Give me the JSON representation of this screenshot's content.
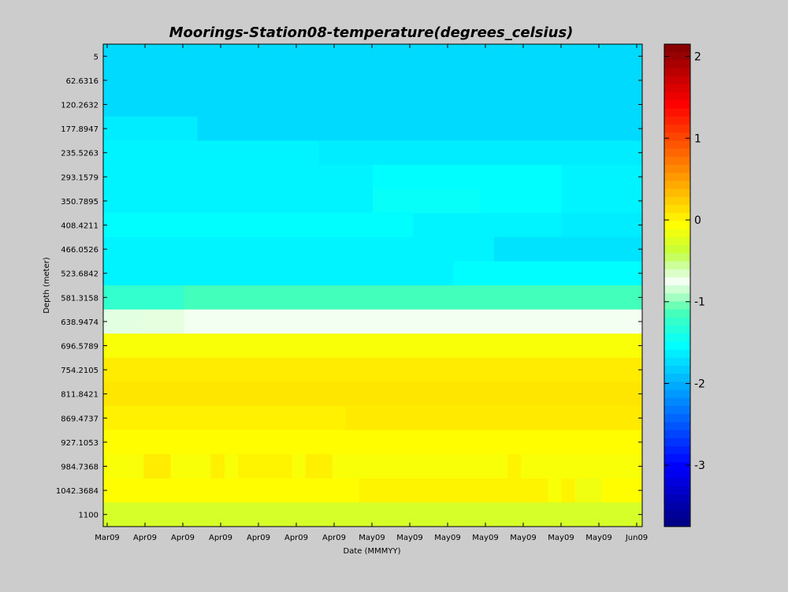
{
  "chart_data": {
    "type": "heatmap",
    "title": "Moorings-Station08-temperature(degrees_celsius)",
    "xlabel": "Date (MMMYY)",
    "ylabel": "Depth (meter)",
    "x_tick_labels": [
      "Mar09",
      "Apr09",
      "Apr09",
      "Apr09",
      "Apr09",
      "Apr09",
      "Apr09",
      "May09",
      "May09",
      "May09",
      "May09",
      "May09",
      "May09",
      "May09",
      "Jun09"
    ],
    "y_tick_labels": [
      "5",
      "62.6316",
      "120.2632",
      "177.8947",
      "235.5263",
      "293.1579",
      "350.7895",
      "408.4211",
      "466.0526",
      "523.6842",
      "581.3158",
      "638.9474",
      "696.5789",
      "754.2105",
      "811.8421",
      "869.4737",
      "927.1053",
      "984.7368",
      "1042.3684",
      "1100"
    ],
    "colorbar": {
      "min": -3.75,
      "max": 2.15,
      "ticks": [
        2,
        1,
        0,
        -1,
        -2,
        -3
      ]
    },
    "time_fraction_columns": 40,
    "segments": [
      {
        "row": 0,
        "runs": [
          [
            0,
            40,
            -1.75
          ]
        ]
      },
      {
        "row": 1,
        "runs": [
          [
            0,
            40,
            -1.75
          ]
        ]
      },
      {
        "row": 2,
        "runs": [
          [
            0,
            40,
            -1.75
          ]
        ]
      },
      {
        "row": 3,
        "runs": [
          [
            0,
            7,
            -1.65
          ],
          [
            7,
            40,
            -1.75
          ]
        ]
      },
      {
        "row": 4,
        "runs": [
          [
            0,
            16,
            -1.6
          ],
          [
            16,
            40,
            -1.65
          ]
        ]
      },
      {
        "row": 5,
        "runs": [
          [
            0,
            20,
            -1.6
          ],
          [
            20,
            34,
            -1.55
          ],
          [
            34,
            40,
            -1.6
          ]
        ]
      },
      {
        "row": 6,
        "runs": [
          [
            0,
            20,
            -1.6
          ],
          [
            20,
            28,
            -1.5
          ],
          [
            28,
            34,
            -1.55
          ],
          [
            34,
            40,
            -1.6
          ]
        ]
      },
      {
        "row": 7,
        "runs": [
          [
            0,
            23,
            -1.55
          ],
          [
            23,
            34,
            -1.6
          ],
          [
            34,
            40,
            -1.65
          ]
        ]
      },
      {
        "row": 8,
        "runs": [
          [
            0,
            29,
            -1.6
          ],
          [
            29,
            40,
            -1.7
          ]
        ]
      },
      {
        "row": 9,
        "runs": [
          [
            0,
            26,
            -1.6
          ],
          [
            26,
            40,
            -1.55
          ]
        ]
      },
      {
        "row": 10,
        "runs": [
          [
            0,
            6,
            -1.25
          ],
          [
            6,
            40,
            -1.15
          ]
        ]
      },
      {
        "row": 11,
        "runs": [
          [
            0,
            3,
            -0.8
          ],
          [
            3,
            6,
            -0.7
          ],
          [
            6,
            40,
            -0.75
          ]
        ]
      },
      {
        "row": 12,
        "runs": [
          [
            0,
            40,
            -0.1
          ]
        ]
      },
      {
        "row": 13,
        "runs": [
          [
            0,
            40,
            0.05
          ]
        ]
      },
      {
        "row": 14,
        "runs": [
          [
            0,
            40,
            0.08
          ]
        ]
      },
      {
        "row": 15,
        "runs": [
          [
            0,
            18,
            0.02
          ],
          [
            18,
            40,
            0.06
          ]
        ]
      },
      {
        "row": 16,
        "runs": [
          [
            0,
            40,
            -0.05
          ]
        ]
      },
      {
        "row": 17,
        "runs": [
          [
            0,
            3,
            -0.1
          ],
          [
            3,
            5,
            0.05
          ],
          [
            5,
            8,
            -0.1
          ],
          [
            8,
            9,
            0.03
          ],
          [
            9,
            10,
            -0.1
          ],
          [
            10,
            14,
            0.0
          ],
          [
            14,
            15,
            -0.1
          ],
          [
            15,
            17,
            0.03
          ],
          [
            17,
            30,
            -0.1
          ],
          [
            30,
            31,
            0.0
          ],
          [
            31,
            40,
            -0.1
          ]
        ]
      },
      {
        "row": 18,
        "runs": [
          [
            0,
            19,
            -0.05
          ],
          [
            19,
            33,
            0.0
          ],
          [
            33,
            34,
            -0.1
          ],
          [
            34,
            35,
            0.0
          ],
          [
            35,
            37,
            -0.15
          ],
          [
            37,
            40,
            -0.05
          ]
        ]
      },
      {
        "row": 19,
        "runs": [
          [
            0,
            40,
            -0.3
          ]
        ]
      }
    ]
  }
}
